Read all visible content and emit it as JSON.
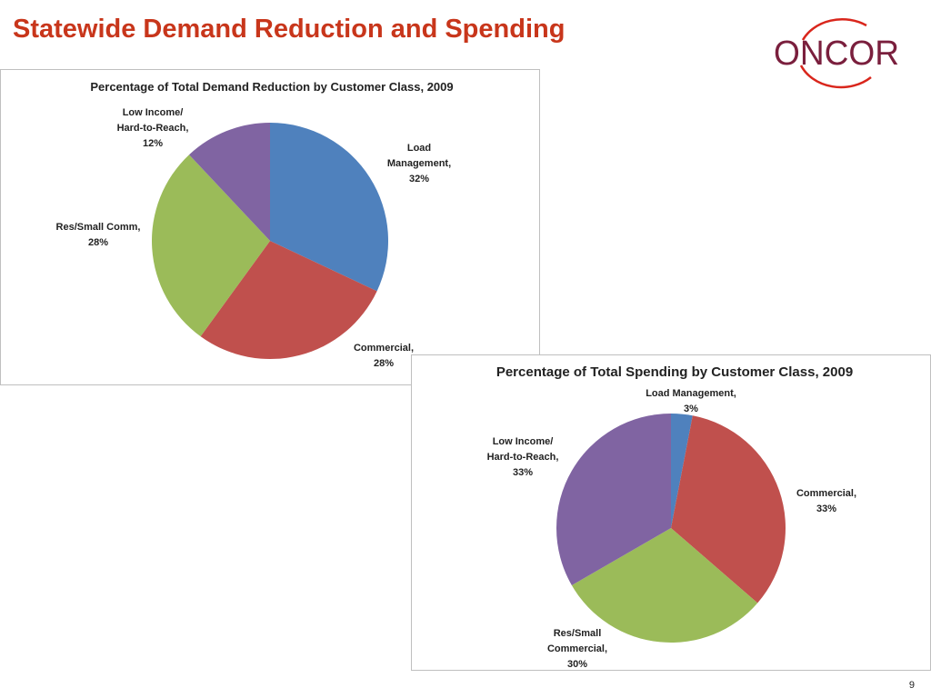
{
  "slide": {
    "title": "Statewide Demand Reduction and Spending",
    "page_number": "9"
  },
  "logo": {
    "text": "ONCOR",
    "colors": {
      "text": "#7a1f3d",
      "swoosh": "#d9261c"
    }
  },
  "chart_data": [
    {
      "type": "pie",
      "title": "Percentage of Total Demand Reduction by Customer Class, 2009",
      "slices": [
        {
          "name": "Load Management",
          "value": 32,
          "label_lines": [
            "Load",
            "Management,",
            "32%"
          ],
          "color": "#4f81bd"
        },
        {
          "name": "Commercial",
          "value": 28,
          "label_lines": [
            "Commercial,",
            "28%"
          ],
          "color": "#c0504d"
        },
        {
          "name": "Res/Small Comm",
          "value": 28,
          "label_lines": [
            "Res/Small Comm,",
            "28%"
          ],
          "color": "#9bbb59"
        },
        {
          "name": "Low Income/ Hard-to-Reach",
          "value": 12,
          "label_lines": [
            "Low Income/",
            "Hard-to-Reach,",
            "12%"
          ],
          "color": "#8064a2"
        }
      ],
      "start": "12 o'clock",
      "direction": "clockwise",
      "legend": "none"
    },
    {
      "type": "pie",
      "title": "Percentage of Total Spending by Customer Class, 2009",
      "slices": [
        {
          "name": "Load Management",
          "value": 3,
          "label_lines": [
            "Load Management,",
            "3%"
          ],
          "color": "#4f81bd"
        },
        {
          "name": "Commercial",
          "value": 33,
          "label_lines": [
            "Commercial,",
            "33%"
          ],
          "color": "#c0504d"
        },
        {
          "name": "Res/Small Commercial",
          "value": 30,
          "label_lines": [
            "Res/Small",
            "Commercial,",
            "30%"
          ],
          "color": "#9bbb59"
        },
        {
          "name": "Low Income/ Hard-to-Reach",
          "value": 33,
          "label_lines": [
            "Low Income/",
            "Hard-to-Reach,",
            "33%"
          ],
          "color": "#8064a2"
        }
      ],
      "start": "12 o'clock",
      "direction": "clockwise",
      "legend": "none"
    }
  ]
}
